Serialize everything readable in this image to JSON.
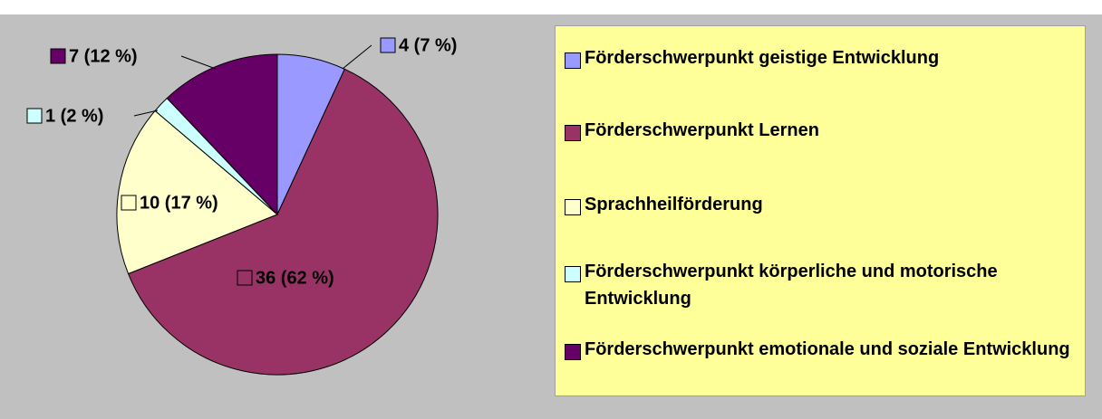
{
  "chart_data": {
    "type": "pie",
    "categories": [
      "Förderschwerpunkt geistige Entwicklung",
      "Förderschwerpunkt Lernen",
      "Sprachheilförderung",
      "Förderschwerpunkt körperliche und motorische Entwicklung",
      "Förderschwerpunkt emotionale und soziale Entwicklung"
    ],
    "values": [
      4,
      36,
      10,
      1,
      7
    ],
    "value_labels": [
      "4 (7 %)",
      "36 (62 %)",
      "10 (17 %)",
      "1 (2 %)",
      "7 (12 %)"
    ],
    "colors": [
      "#9999ff",
      "#993366",
      "#ffffcc",
      "#ccffff",
      "#660066"
    ],
    "legend": "right"
  }
}
